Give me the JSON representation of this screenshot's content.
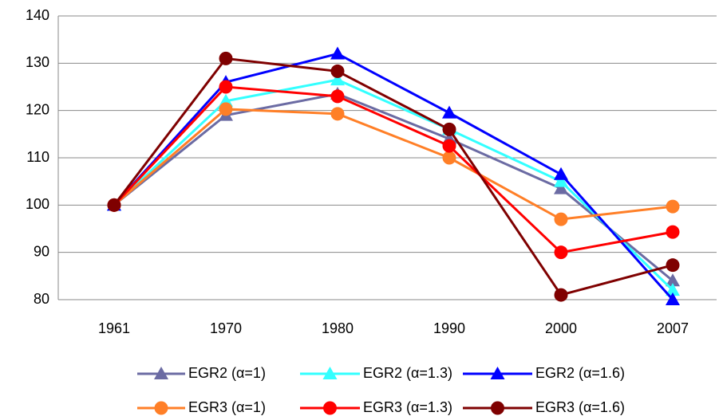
{
  "chart_data": {
    "type": "line",
    "categories": [
      "1961",
      "1970",
      "1980",
      "1990",
      "2000",
      "2007"
    ],
    "series": [
      {
        "name": "EGR2 (α=1)",
        "color": "#6b6ba3",
        "marker": "triangle",
        "values": [
          100,
          119,
          123.5,
          114,
          103.5,
          84
        ]
      },
      {
        "name": "EGR2 (α=1.3)",
        "color": "#33ffff",
        "marker": "triangle",
        "values": [
          100,
          122,
          126.5,
          116,
          105,
          82
        ]
      },
      {
        "name": "EGR2 (α=1.6)",
        "color": "#0000ff",
        "marker": "triangle",
        "values": [
          100,
          126,
          132,
          119.5,
          106.5,
          80
        ]
      },
      {
        "name": "EGR3 (α=1)",
        "color": "#ff7f27",
        "marker": "circle",
        "values": [
          100,
          120.3,
          119.3,
          110,
          97,
          99.7
        ]
      },
      {
        "name": "EGR3 (α=1.3)",
        "color": "#ff0000",
        "marker": "circle",
        "values": [
          100,
          125,
          123,
          112.5,
          90,
          94.3
        ]
      },
      {
        "name": "EGR3 (α=1.6)",
        "color": "#7f0000",
        "marker": "circle",
        "values": [
          100,
          131,
          128.3,
          116,
          81,
          87.3
        ]
      }
    ],
    "ylim": [
      80,
      140
    ],
    "yticks": [
      80,
      90,
      100,
      110,
      120,
      130,
      140
    ],
    "grid": true
  }
}
